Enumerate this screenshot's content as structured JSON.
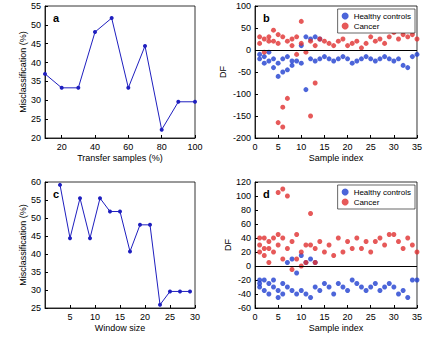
{
  "chart_data": [
    {
      "type": "line",
      "title": "a",
      "x_label": "Transfer samples (%)",
      "y_label": "Misclassification (%)",
      "xlim": [
        10,
        100
      ],
      "xticks": [
        20,
        40,
        60,
        80,
        100
      ],
      "ylim": [
        20,
        55
      ],
      "yticks": [
        20,
        25,
        30,
        35,
        40,
        45,
        50,
        55
      ],
      "grid": false,
      "color": "#1f1fbf",
      "marker": "circle",
      "x": [
        10,
        20,
        30,
        40,
        50,
        60,
        70,
        80,
        90,
        100
      ],
      "values": [
        37,
        33.3,
        33.3,
        48.1,
        51.8,
        33.3,
        44.4,
        22.2,
        29.6,
        29.6
      ]
    },
    {
      "type": "scatter",
      "title": "b",
      "x_label": "Sample index",
      "y_label": "DF",
      "xlim": [
        0,
        35
      ],
      "xticks": [
        0,
        5,
        10,
        15,
        20,
        25,
        30,
        35
      ],
      "ylim": [
        -200,
        100
      ],
      "yticks": [
        -200,
        -150,
        -100,
        -50,
        0,
        50,
        100
      ],
      "grid": false,
      "legend": "upper right",
      "reference_line": 0,
      "series": [
        {
          "name": "Healthy controls",
          "color": "#1f3fcf",
          "marker": "circle",
          "x": [
            1,
            1,
            2,
            2,
            3,
            3,
            4,
            4,
            5,
            5,
            6,
            6,
            7,
            7,
            8,
            8,
            9,
            10,
            10,
            11,
            11,
            12,
            12,
            13,
            13,
            14,
            14,
            15,
            16,
            17,
            18,
            19,
            20,
            21,
            22,
            23,
            24,
            25,
            26,
            27,
            28,
            29,
            30,
            31,
            32,
            33,
            34,
            35
          ],
          "values": [
            -20,
            -10,
            -30,
            -15,
            -25,
            -5,
            -40,
            -20,
            -60,
            -30,
            -50,
            -20,
            -45,
            -15,
            -35,
            -25,
            -25,
            -30,
            10,
            -90,
            30,
            25,
            -20,
            30,
            -25,
            -20,
            25,
            -15,
            -20,
            -25,
            -20,
            -15,
            -20,
            -30,
            -25,
            -20,
            -15,
            -20,
            -25,
            -20,
            -15,
            -20,
            -25,
            -20,
            -35,
            -40,
            -15,
            -10
          ]
        },
        {
          "name": "Cancer",
          "color": "#e03030",
          "marker": "circle",
          "x": [
            1,
            1,
            2,
            2,
            3,
            3,
            4,
            4,
            5,
            5,
            5,
            6,
            6,
            6,
            7,
            7,
            8,
            8,
            9,
            9,
            10,
            10,
            11,
            12,
            12,
            13,
            13,
            14,
            15,
            16,
            17,
            18,
            19,
            20,
            21,
            22,
            23,
            24,
            25,
            26,
            27,
            28,
            29,
            30,
            31,
            32,
            33,
            34,
            35
          ],
          "values": [
            30,
            15,
            25,
            -5,
            30,
            20,
            45,
            20,
            35,
            -165,
            15,
            30,
            -175,
            -130,
            20,
            -110,
            25,
            10,
            30,
            -10,
            65,
            15,
            -5,
            -150,
            20,
            -75,
            10,
            25,
            20,
            15,
            10,
            20,
            25,
            10,
            15,
            20,
            5,
            15,
            30,
            20,
            25,
            15,
            30,
            40,
            25,
            35,
            30,
            35,
            25
          ]
        }
      ]
    },
    {
      "type": "line",
      "title": "c",
      "x_label": "Window size",
      "y_label": "Misclassification (%)",
      "xlim": [
        0,
        30
      ],
      "xticks": [
        5,
        10,
        15,
        20,
        25,
        30
      ],
      "ylim": [
        25,
        60
      ],
      "yticks": [
        25,
        30,
        35,
        40,
        45,
        50,
        55,
        60
      ],
      "grid": false,
      "color": "#1f1fbf",
      "marker": "circle",
      "x": [
        3,
        5,
        7,
        9,
        11,
        13,
        15,
        17,
        19,
        21,
        23,
        25,
        27,
        29
      ],
      "values": [
        59.2,
        44.4,
        55.5,
        44.4,
        55.5,
        51.8,
        51.8,
        40.7,
        48.1,
        48.1,
        25.9,
        29.6,
        29.6,
        29.6
      ]
    },
    {
      "type": "scatter",
      "title": "d",
      "x_label": "Sample index",
      "y_label": "DF",
      "xlim": [
        0,
        35
      ],
      "xticks": [
        0,
        5,
        10,
        15,
        20,
        25,
        30,
        35
      ],
      "ylim": [
        -60,
        120
      ],
      "yticks": [
        -60,
        -40,
        -20,
        0,
        20,
        40,
        60,
        80,
        100,
        120
      ],
      "grid": false,
      "legend": "upper right",
      "reference_line": 0,
      "series": [
        {
          "name": "Healthy controls",
          "color": "#1f3fcf",
          "marker": "circle",
          "x": [
            1,
            1,
            1,
            2,
            2,
            3,
            3,
            4,
            4,
            5,
            5,
            6,
            6,
            7,
            7,
            8,
            8,
            9,
            9,
            10,
            10,
            11,
            11,
            12,
            12,
            13,
            13,
            14,
            15,
            16,
            17,
            18,
            19,
            20,
            21,
            22,
            23,
            24,
            25,
            26,
            27,
            28,
            29,
            30,
            31,
            32,
            33,
            34,
            35
          ],
          "values": [
            -20,
            -25,
            -30,
            -20,
            -35,
            -25,
            -40,
            -30,
            -20,
            -35,
            -45,
            -40,
            -25,
            -30,
            5,
            -35,
            10,
            -40,
            -10,
            -35,
            15,
            -40,
            5,
            -45,
            10,
            -30,
            5,
            -35,
            -25,
            -30,
            -40,
            -25,
            -30,
            -35,
            -20,
            -25,
            -30,
            -35,
            -30,
            -25,
            -35,
            -30,
            -25,
            -30,
            -40,
            -35,
            -45,
            -20,
            -20
          ]
        },
        {
          "name": "Cancer",
          "color": "#e03030",
          "marker": "circle",
          "x": [
            1,
            1,
            1,
            2,
            2,
            2,
            3,
            3,
            3,
            4,
            4,
            5,
            5,
            5,
            6,
            6,
            6,
            7,
            7,
            8,
            8,
            9,
            9,
            10,
            10,
            11,
            11,
            12,
            12,
            13,
            13,
            14,
            15,
            16,
            17,
            18,
            19,
            20,
            21,
            22,
            23,
            24,
            25,
            26,
            27,
            28,
            29,
            30,
            31,
            32,
            33,
            34,
            35
          ],
          "values": [
            40,
            30,
            20,
            40,
            25,
            15,
            35,
            25,
            5,
            40,
            20,
            45,
            105,
            30,
            110,
            40,
            10,
            100,
            25,
            35,
            -5,
            45,
            10,
            20,
            0,
            30,
            5,
            75,
            30,
            5,
            25,
            35,
            20,
            30,
            15,
            40,
            20,
            35,
            25,
            40,
            25,
            35,
            20,
            35,
            40,
            30,
            45,
            45,
            35,
            25,
            40,
            30,
            20
          ]
        }
      ]
    }
  ]
}
